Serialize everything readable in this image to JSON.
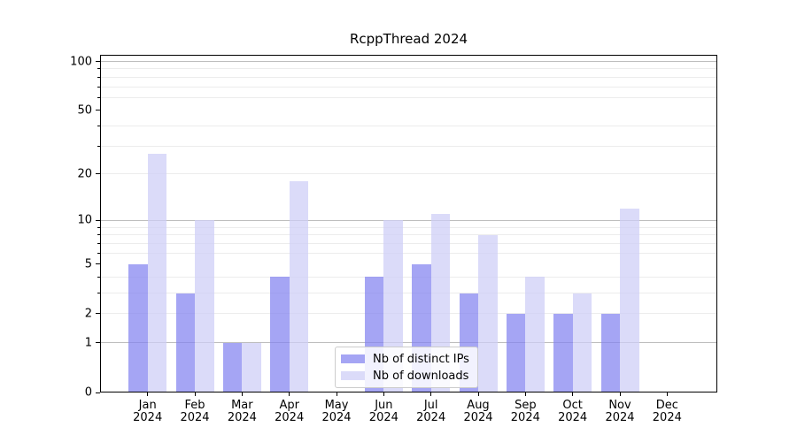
{
  "title": "RcppThread 2024",
  "chart_data": {
    "type": "bar",
    "title": "RcppThread 2024",
    "categories": [
      "Jan 2024",
      "Feb 2024",
      "Mar 2024",
      "Apr 2024",
      "May 2024",
      "Jun 2024",
      "Jul 2024",
      "Aug 2024",
      "Sep 2024",
      "Oct 2024",
      "Nov 2024",
      "Dec 2024"
    ],
    "series": [
      {
        "name": "Nb of distinct IPs",
        "color": "rgba(130,130,240,0.72)",
        "values": [
          5,
          3,
          1,
          4,
          0,
          4,
          5,
          3,
          2,
          2,
          2,
          0
        ]
      },
      {
        "name": "Nb of downloads",
        "color": "rgba(205,205,247,0.72)",
        "values": [
          27,
          10,
          1,
          18,
          0,
          10,
          11,
          8,
          4,
          3,
          12,
          0
        ]
      }
    ],
    "xlabel": "",
    "ylabel": "",
    "y_scale": "log10(value+1)",
    "ylim": [
      0,
      110
    ],
    "y_ticks": [
      0,
      1,
      2,
      5,
      10,
      20,
      50,
      100
    ],
    "y_major_gridlines": [
      1,
      10,
      100
    ],
    "y_minor_gridlines": [
      2,
      3,
      4,
      6,
      7,
      8,
      9,
      20,
      30,
      40,
      60,
      70,
      80,
      90
    ],
    "grid": true,
    "legend_position": "lower center"
  },
  "colors": {
    "background": "#ffffff",
    "spine": "#000000",
    "major_grid": "#bdbdbd",
    "minor_grid": "#ececec",
    "legend_border": "#cccccc",
    "bar_ips_on_white": "#a9a9f4",
    "bar_downloads_on_white": "#dadaf9"
  }
}
